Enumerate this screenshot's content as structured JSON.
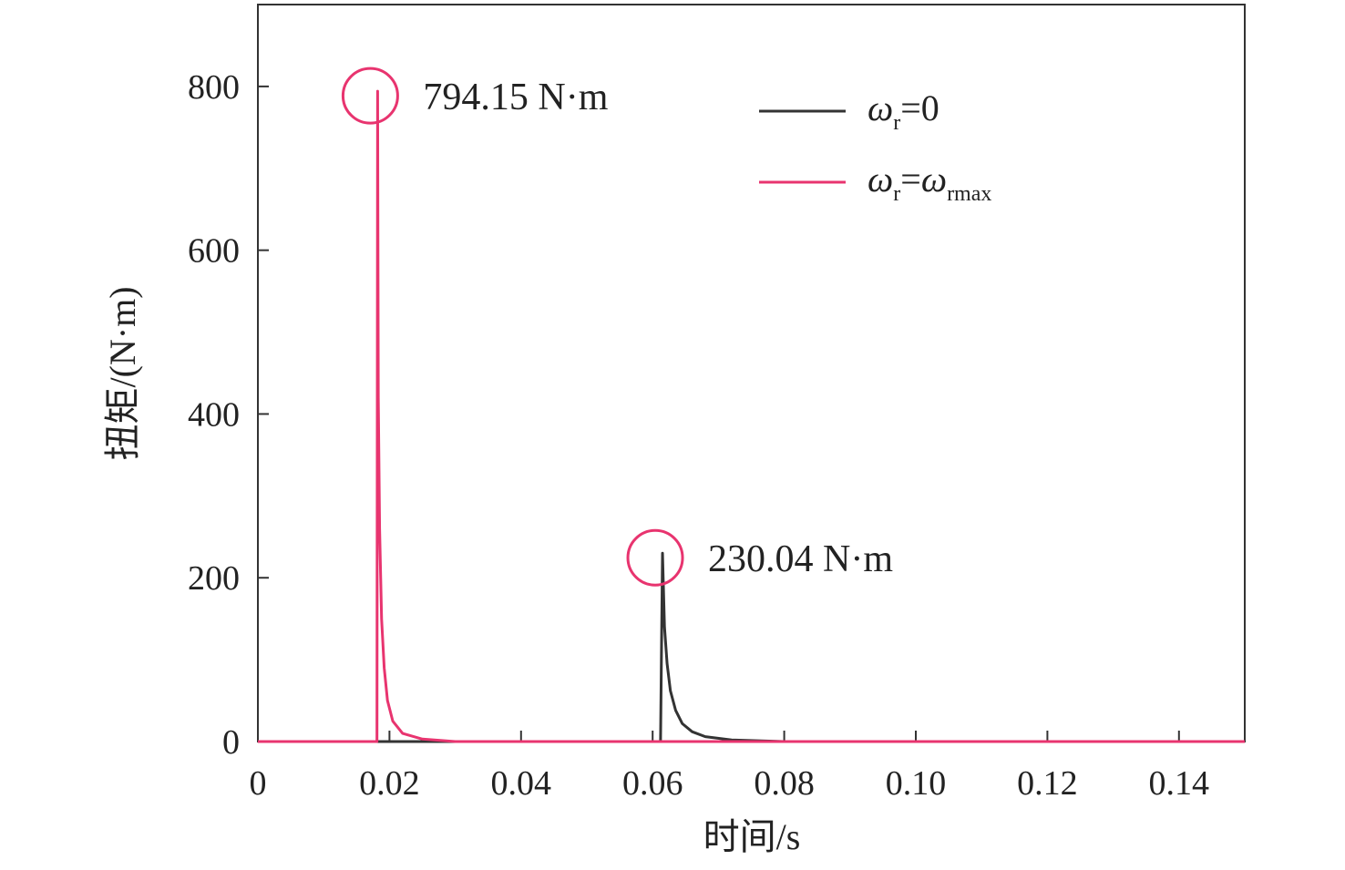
{
  "chart_data": {
    "type": "line",
    "title": "",
    "xlabel": "时间/s",
    "ylabel": "扭矩/(N·m)",
    "xlim": [
      0,
      0.15
    ],
    "ylim": [
      0,
      900
    ],
    "x_ticks": [
      0,
      0.02,
      0.04,
      0.06,
      0.08,
      0.1,
      0.12,
      0.14
    ],
    "x_tick_labels": [
      "0",
      "0.02",
      "0.04",
      "0.06",
      "0.08",
      "0.10",
      "0.12",
      "0.14"
    ],
    "y_ticks": [
      0,
      200,
      400,
      600,
      800
    ],
    "y_tick_labels": [
      "0",
      "200",
      "400",
      "600",
      "800"
    ],
    "grid": false,
    "legend_position": "top-right",
    "series": [
      {
        "name": "ωr=0",
        "color": "#333333",
        "x": [
          0,
          0.0612,
          0.0615,
          0.0618,
          0.0622,
          0.0627,
          0.0635,
          0.0645,
          0.066,
          0.068,
          0.072,
          0.08,
          0.15
        ],
        "y": [
          0,
          0,
          230.04,
          140,
          95,
          62,
          38,
          22,
          12,
          6,
          2,
          0,
          0
        ]
      },
      {
        "name": "ωr=ωrmax",
        "color": "#e8346f",
        "x": [
          0,
          0.0181,
          0.0182,
          0.0183,
          0.0185,
          0.0188,
          0.0192,
          0.0197,
          0.0205,
          0.022,
          0.025,
          0.03,
          0.15
        ],
        "y": [
          0,
          0,
          794.15,
          420,
          260,
          150,
          90,
          50,
          25,
          10,
          3,
          0,
          0
        ]
      }
    ],
    "legend": [
      {
        "symbol": "ω",
        "sub": "r",
        "rhs": "=0"
      },
      {
        "symbol": "ω",
        "sub": "r",
        "rhs": "=",
        "symbol2": "ω",
        "sub2": "rmax"
      }
    ],
    "annotations": [
      {
        "text": "794.15 N·m",
        "x": 0.0182,
        "y": 794.15,
        "color": "#e8346f"
      },
      {
        "text": "230.04 N·m",
        "x": 0.0615,
        "y": 230.04,
        "color": "#e8346f"
      }
    ]
  }
}
